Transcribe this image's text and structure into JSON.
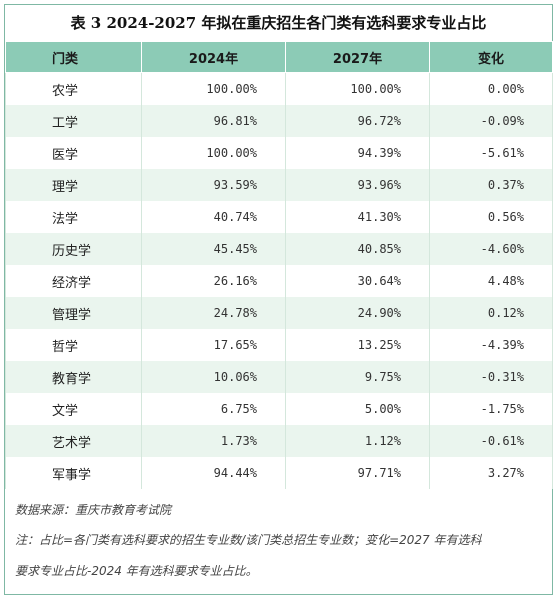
{
  "title": "表 3  2024-2027 年拟在重庆招生各门类有选科要求专业占比",
  "headers": [
    "门类",
    "2024年",
    "2027年",
    "变化"
  ],
  "rows": [
    {
      "cat": "农学",
      "v2024": "100.00%",
      "v2027": "100.00%",
      "change": "0.00%"
    },
    {
      "cat": "工学",
      "v2024": "96.81%",
      "v2027": "96.72%",
      "change": "-0.09%"
    },
    {
      "cat": "医学",
      "v2024": "100.00%",
      "v2027": "94.39%",
      "change": "-5.61%"
    },
    {
      "cat": "理学",
      "v2024": "93.59%",
      "v2027": "93.96%",
      "change": "0.37%"
    },
    {
      "cat": "法学",
      "v2024": "40.74%",
      "v2027": "41.30%",
      "change": "0.56%"
    },
    {
      "cat": "历史学",
      "v2024": "45.45%",
      "v2027": "40.85%",
      "change": "-4.60%"
    },
    {
      "cat": "经济学",
      "v2024": "26.16%",
      "v2027": "30.64%",
      "change": "4.48%"
    },
    {
      "cat": "管理学",
      "v2024": "24.78%",
      "v2027": "24.90%",
      "change": "0.12%"
    },
    {
      "cat": "哲学",
      "v2024": "17.65%",
      "v2027": "13.25%",
      "change": "-4.39%"
    },
    {
      "cat": "教育学",
      "v2024": "10.06%",
      "v2027": "9.75%",
      "change": "-0.31%"
    },
    {
      "cat": "文学",
      "v2024": "6.75%",
      "v2027": "5.00%",
      "change": "-1.75%"
    },
    {
      "cat": "艺术学",
      "v2024": "1.73%",
      "v2027": "1.12%",
      "change": "-0.61%"
    },
    {
      "cat": "军事学",
      "v2024": "94.44%",
      "v2027": "97.71%",
      "change": "3.27%"
    }
  ],
  "notes": {
    "source": "数据来源：重庆市教育考试院",
    "note_line1": "注：占比=各门类有选科要求的招生专业数/该门类总招生专业数；变化=2027 年有选科",
    "note_line2": "要求专业占比-2024 年有选科要求专业占比。"
  }
}
